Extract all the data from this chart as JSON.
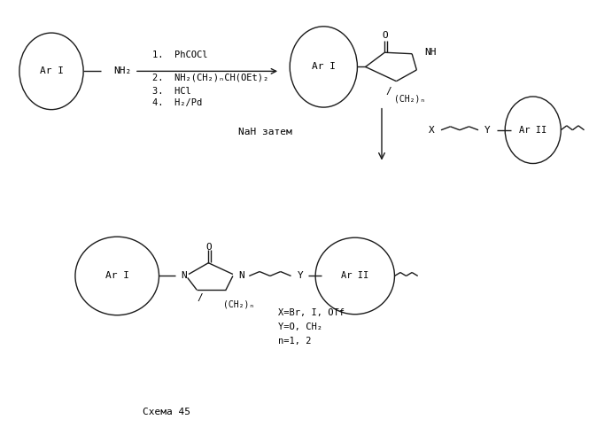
{
  "background_color": "#ffffff",
  "figsize": [
    6.65,
    5.0
  ],
  "dpi": 100,
  "schema_label": "Схема 45",
  "step1": "1.  PhCOCl",
  "step2": "2.  NH₂(CH₂)ₙCH(OEt)₂",
  "step3": "3.  HCl",
  "step4": "4.  H₂/Pd",
  "nah_label": "NaH затем",
  "x_label": "X=Br, I, OTf",
  "y_label": "Y=O, CH₂",
  "n_label": "n=1, 2",
  "text_color": "#000000",
  "line_color": "#1a1a1a"
}
